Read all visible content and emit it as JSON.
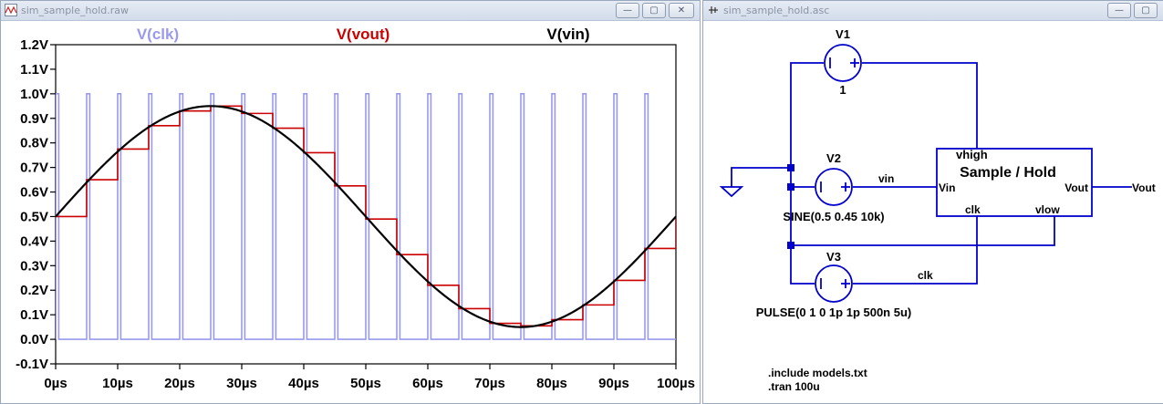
{
  "waveform_window": {
    "title": "sim_sample_hold.raw",
    "buttons": {
      "minimize": "—",
      "maximize": "▢",
      "close": "✕"
    }
  },
  "schematic_window": {
    "title": "sim_sample_hold.asc",
    "buttons": {
      "minimize": "—",
      "maximize": "▢"
    }
  },
  "chart_data": {
    "type": "line",
    "title": "",
    "xlabel": "",
    "ylabel": "",
    "xlim": [
      0,
      100
    ],
    "ylim": [
      -0.1,
      1.2
    ],
    "x_unit": "µs",
    "y_unit": "V",
    "x_ticks": [
      "0µs",
      "10µs",
      "20µs",
      "30µs",
      "40µs",
      "50µs",
      "60µs",
      "70µs",
      "80µs",
      "90µs",
      "100µs"
    ],
    "y_ticks": [
      "-0.1V",
      "0.0V",
      "0.1V",
      "0.2V",
      "0.3V",
      "0.4V",
      "0.5V",
      "0.6V",
      "0.7V",
      "0.8V",
      "0.9V",
      "1.0V",
      "1.1V",
      "1.2V"
    ],
    "grid": false,
    "legend_placement": "top",
    "series": [
      {
        "name": "V(clk)",
        "color": "#9999ee",
        "kind": "pulse",
        "params": {
          "v1": 0,
          "v2": 1,
          "delay_us": 0,
          "width_us": 0.5,
          "period_us": 5
        }
      },
      {
        "name": "V(vout)",
        "color": "#cc0000",
        "kind": "step",
        "x": [
          0,
          5,
          10,
          15,
          20,
          25,
          30,
          35,
          40,
          45,
          50,
          55,
          60,
          65,
          70,
          75,
          80,
          85,
          90,
          95,
          100
        ],
        "y": [
          0.5,
          0.65,
          0.775,
          0.87,
          0.93,
          0.95,
          0.92,
          0.86,
          0.76,
          0.625,
          0.49,
          0.345,
          0.22,
          0.125,
          0.065,
          0.055,
          0.08,
          0.14,
          0.24,
          0.37,
          0.5
        ]
      },
      {
        "name": "V(vin)",
        "color": "#000000",
        "kind": "sine",
        "params": {
          "offset": 0.5,
          "amplitude": 0.45,
          "freq_khz": 10
        }
      }
    ]
  },
  "schematic": {
    "v1": {
      "name": "V1",
      "value": "1"
    },
    "v2": {
      "name": "V2",
      "value": "SINE(0.5 0.45 10k)"
    },
    "v3": {
      "name": "V3",
      "value": "PULSE(0 1 0 1p 1p 500n 5u)"
    },
    "block": {
      "title": "Sample / Hold",
      "pin_vhigh": "vhigh",
      "pin_vin": "Vin",
      "pin_vout": "Vout",
      "pin_clk": "clk",
      "pin_vlow": "vlow"
    },
    "nets": {
      "vin": "vin",
      "clk": "clk",
      "vout": "Vout"
    },
    "directives": {
      "include": ".include models.txt",
      "tran": ".tran 100u"
    },
    "colors": {
      "wire": "#0000cc",
      "component": "#0000cc",
      "junction": "#0000cc",
      "text": "#000000"
    }
  }
}
